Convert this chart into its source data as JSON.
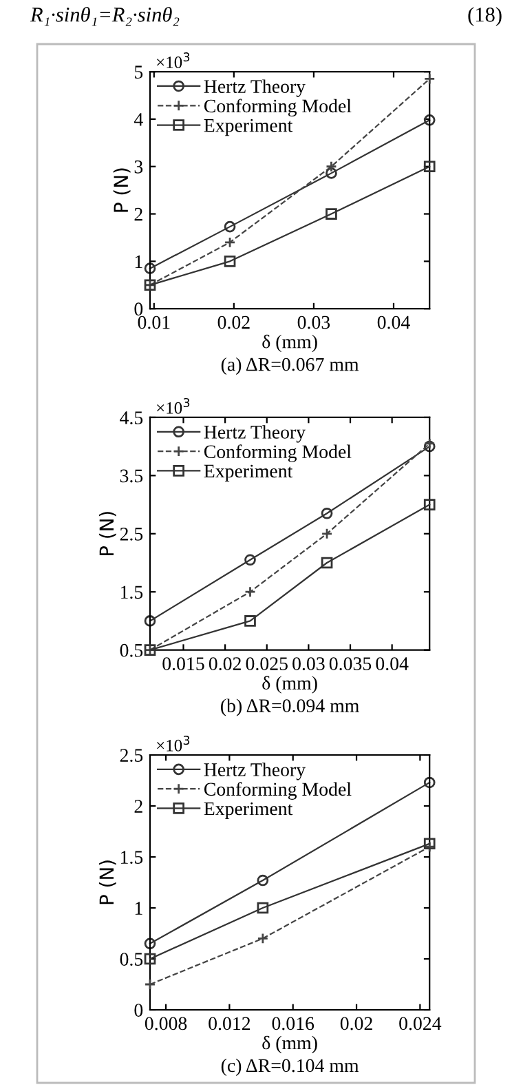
{
  "chart_data": [
    {
      "type": "line",
      "subtitle": "(a) ΔR=0.067 mm",
      "xlabel": "δ (mm)",
      "ylabel": "P (N)",
      "annotations": [
        "×10$^{3}$",
        "R₁·sinθ₁=R₂·sinθ₂",
        "(18)"
      ],
      "x": [
        0.0095,
        0.0195,
        0.0322,
        0.0445
      ],
      "xlim": [
        0.0095,
        0.0445
      ],
      "xticks": [
        0.01,
        0.02,
        0.03,
        0.04
      ],
      "ylim": [
        0,
        5
      ],
      "yticks": [
        0,
        1,
        2,
        3,
        4,
        5
      ],
      "legend": "top left",
      "grid": false,
      "series": [
        {
          "name": "Hertz Theory",
          "color": "#333333",
          "marker": "circle",
          "line_style": "solid",
          "values": [
            0.85,
            1.73,
            2.86,
            3.98
          ]
        },
        {
          "name": "Conforming Model",
          "color": "#444444",
          "marker": "cross",
          "line_style": "dashed",
          "values": [
            0.5,
            1.4,
            3.0,
            4.85
          ]
        },
        {
          "name": "Experiment",
          "color": "#333333",
          "marker": "square",
          "line_style": "solid",
          "values": [
            0.5,
            1.0,
            2.0,
            3.0
          ]
        }
      ]
    },
    {
      "type": "line",
      "subtitle": "(b) ΔR=0.094 mm",
      "xlabel": "δ (mm)",
      "ylabel": "P (N)",
      "annotations": [
        "×10$^{3}$"
      ],
      "x": [
        0.011,
        0.023,
        0.0322,
        0.0445
      ],
      "xlim": [
        0.011,
        0.0445
      ],
      "xticks": [
        0.015,
        0.02,
        0.025,
        0.03,
        0.035,
        0.04
      ],
      "ylim": [
        0.5,
        4.5
      ],
      "yticks": [
        0.5,
        1.5,
        2.5,
        3.5,
        4.5
      ],
      "legend": "top left",
      "grid": false,
      "series": [
        {
          "name": "Hertz Theory",
          "color": "#333333",
          "marker": "circle",
          "line_style": "solid",
          "values": [
            1.0,
            2.05,
            2.85,
            4.0
          ]
        },
        {
          "name": "Conforming Model",
          "color": "#444444",
          "marker": "cross",
          "line_style": "dashed",
          "values": [
            0.5,
            1.5,
            2.5,
            4.05
          ]
        },
        {
          "name": "Experiment",
          "color": "#333333",
          "marker": "square",
          "line_style": "solid",
          "values": [
            0.5,
            1.0,
            2.0,
            3.0
          ]
        }
      ]
    },
    {
      "type": "line",
      "subtitle": "(c) ΔR=0.104 mm",
      "xlabel": "δ (mm)",
      "ylabel": "P (N)",
      "annotations": [
        "×10$^{3}$"
      ],
      "x": [
        0.007,
        0.0141,
        0.0246
      ],
      "xlim": [
        0.007,
        0.0246
      ],
      "xticks": [
        0.008,
        0.012,
        0.016,
        0.02,
        0.024
      ],
      "ylim": [
        0,
        2.5
      ],
      "yticks": [
        0,
        0.5,
        1,
        1.5,
        2,
        2.5
      ],
      "legend": "top left",
      "grid": false,
      "series": [
        {
          "name": "Hertz Theory",
          "color": "#333333",
          "marker": "circle",
          "line_style": "solid",
          "values": [
            0.65,
            1.27,
            2.23
          ]
        },
        {
          "name": "Conforming Model",
          "color": "#444444",
          "marker": "cross",
          "line_style": "dashed",
          "values": [
            0.25,
            0.7,
            1.6
          ]
        },
        {
          "name": "Experiment",
          "color": "#333333",
          "marker": "square",
          "line_style": "solid",
          "values": [
            0.5,
            1.0,
            1.63
          ]
        }
      ]
    }
  ]
}
